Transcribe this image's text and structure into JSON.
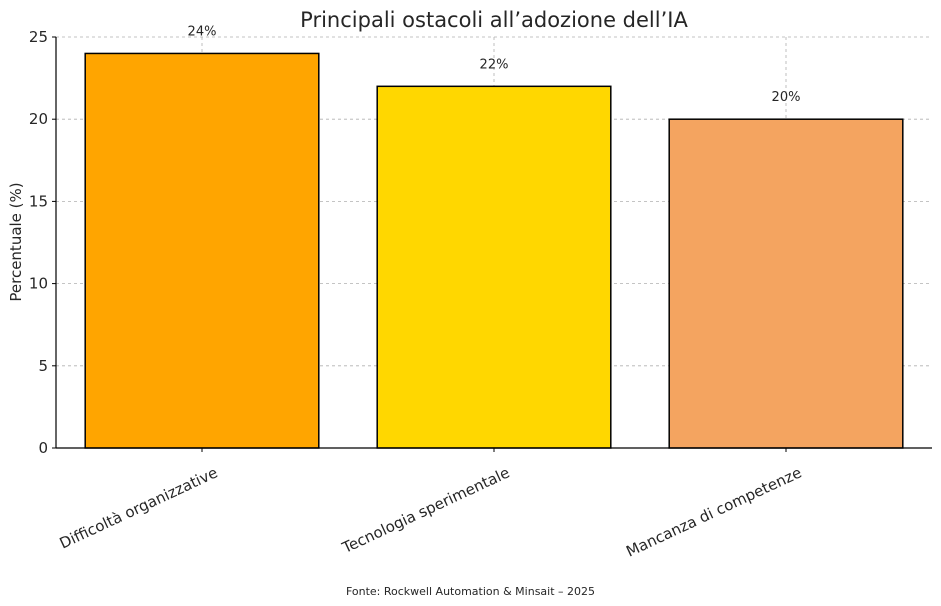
{
  "chart_data": {
    "type": "bar",
    "title": "Principali ostacoli all’adozione dell’IA",
    "xlabel": "",
    "ylabel": "Percentuale (%)",
    "categories": [
      "Difficoltà organizzative",
      "Tecnologia sperimentale",
      "Mancanza di competenze"
    ],
    "values": [
      24,
      22,
      20
    ],
    "data_labels": [
      "24%",
      "22%",
      "20%"
    ],
    "colors": [
      "#ffa500",
      "#ffd700",
      "#f4a460"
    ],
    "bar_edge_color": "#000000",
    "ylim": [
      0,
      25
    ],
    "yticks": [
      0,
      5,
      10,
      15,
      20,
      25
    ],
    "grid": true,
    "legend": "none"
  },
  "caption": "Fonte: Rockwell Automation & Minsait – 2025"
}
